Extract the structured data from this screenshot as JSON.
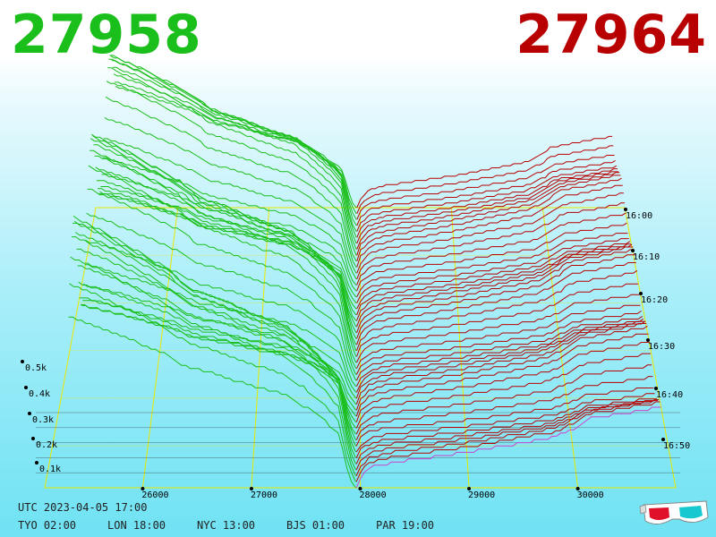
{
  "header": {
    "bid_price": "27958",
    "ask_price": "27964"
  },
  "footer": {
    "utc": "UTC 2023-04-05 17:00",
    "zones": [
      {
        "label": "TYO 02:00"
      },
      {
        "label": "LON 18:00"
      },
      {
        "label": "NYC 13:00"
      },
      {
        "label": "BJS 01:00"
      },
      {
        "label": "PAR 19:00"
      }
    ]
  },
  "icons": {
    "glasses": "3d-glasses-icon"
  },
  "colors": {
    "bid": "#1bbf1b",
    "ask": "#b80000",
    "latest_ask": "#cc44cc",
    "grid": "#e8e800"
  },
  "chart_data": {
    "type": "area",
    "title": "",
    "x_axis": {
      "ticks": [
        "26000",
        "27000",
        "28000",
        "29000",
        "30000"
      ],
      "values": [
        26000,
        27000,
        28000,
        29000,
        30000
      ],
      "range": [
        25100,
        30900
      ]
    },
    "depth_axis": {
      "ticks": [
        "0.1k",
        "0.2k",
        "0.3k",
        "0.4k",
        "0.5k"
      ],
      "values": [
        100,
        200,
        300,
        400,
        500
      ]
    },
    "time_axis": {
      "ticks": [
        "16:00",
        "16:10",
        "16:20",
        "16:30",
        "16:40",
        "16:50"
      ]
    },
    "mid_price": 27961,
    "bid_profile": [
      {
        "price": 27958,
        "depth": 0
      },
      {
        "price": 27900,
        "depth": 20
      },
      {
        "price": 27850,
        "depth": 60
      },
      {
        "price": 27800,
        "depth": 100
      },
      {
        "price": 27700,
        "depth": 120
      },
      {
        "price": 27500,
        "depth": 150
      },
      {
        "price": 27300,
        "depth": 175
      },
      {
        "price": 27000,
        "depth": 190
      },
      {
        "price": 26700,
        "depth": 210
      },
      {
        "price": 26400,
        "depth": 225
      },
      {
        "price": 26200,
        "depth": 250
      },
      {
        "price": 25900,
        "depth": 275
      },
      {
        "price": 25600,
        "depth": 300
      },
      {
        "price": 25300,
        "depth": 320
      }
    ],
    "ask_profile": [
      {
        "price": 27964,
        "depth": 0
      },
      {
        "price": 28000,
        "depth": 20
      },
      {
        "price": 28100,
        "depth": 40
      },
      {
        "price": 28300,
        "depth": 50
      },
      {
        "price": 28600,
        "depth": 58
      },
      {
        "price": 29000,
        "depth": 70
      },
      {
        "price": 29400,
        "depth": 85
      },
      {
        "price": 29800,
        "depth": 100
      },
      {
        "price": 30000,
        "depth": 120
      },
      {
        "price": 30100,
        "depth": 135
      },
      {
        "price": 30400,
        "depth": 145
      },
      {
        "price": 30800,
        "depth": 160
      }
    ],
    "snapshots": 48
  }
}
